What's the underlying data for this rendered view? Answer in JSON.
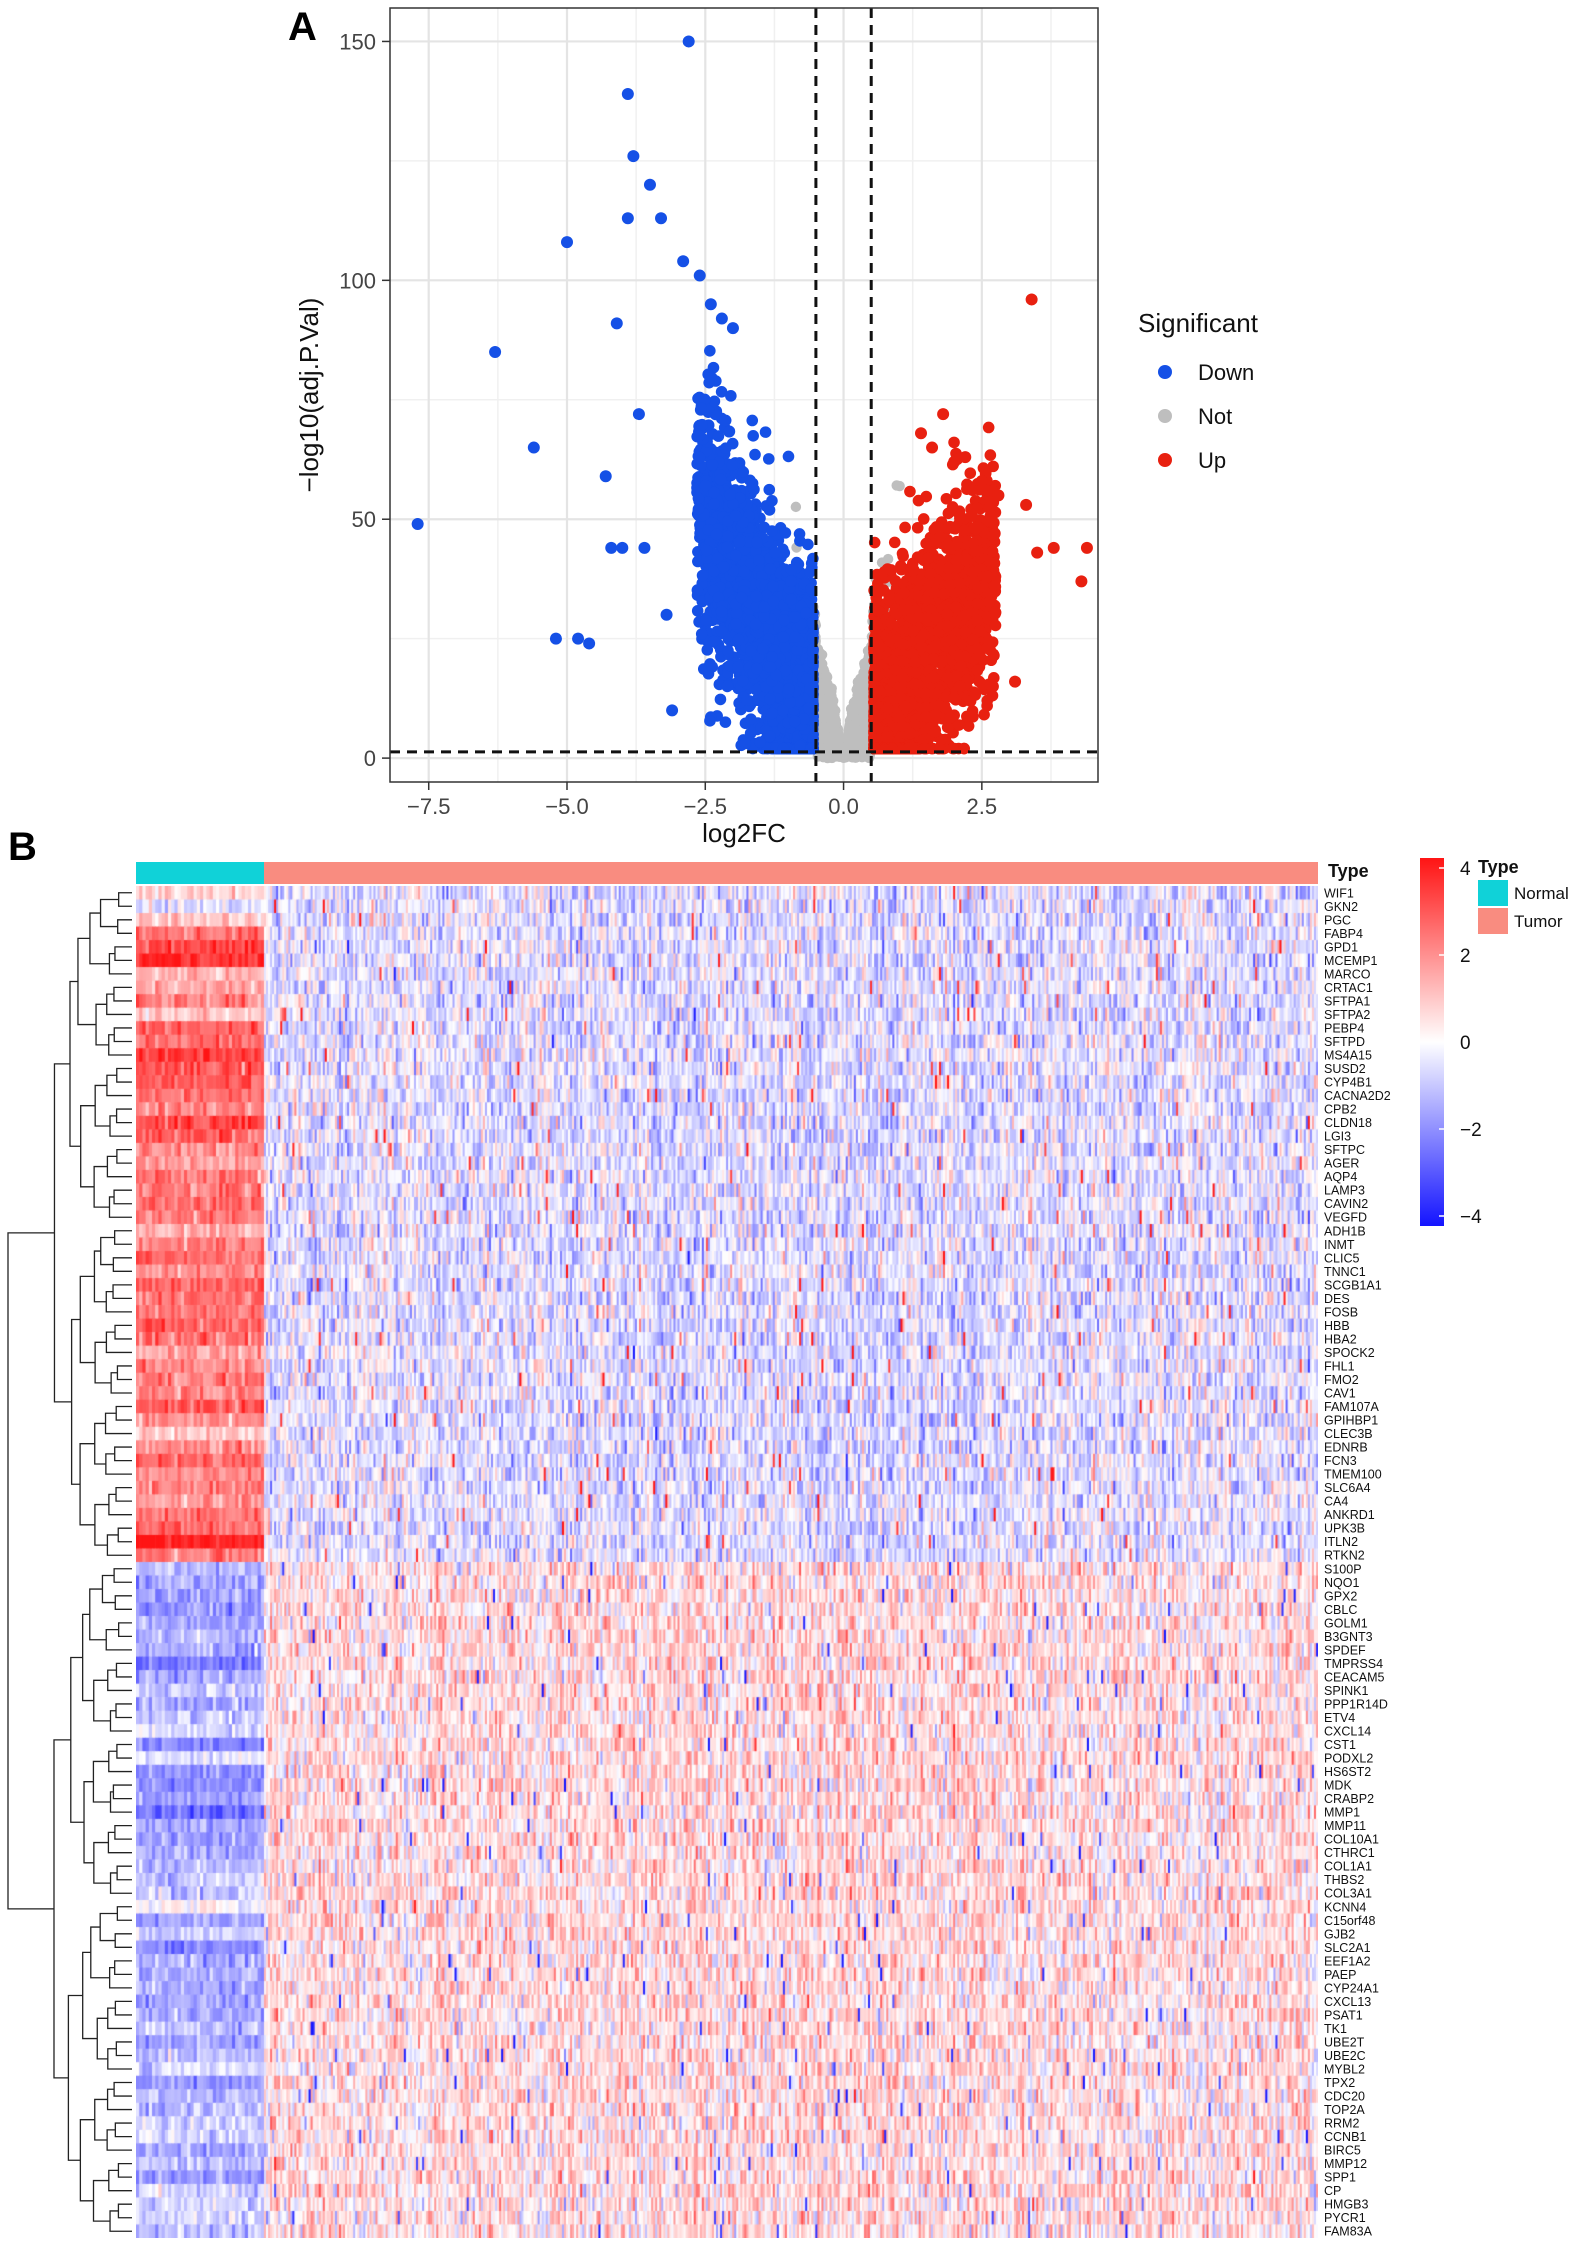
{
  "panel_a": {
    "label": "A",
    "chart_data": {
      "type": "scatter",
      "xlabel": "log2FC",
      "ylabel": "−log10(adj.P.Val)",
      "xlim": [
        -8.2,
        4.6
      ],
      "ylim": [
        -5,
        157
      ],
      "xticks": [
        -7.5,
        -5.0,
        -2.5,
        0.0,
        2.5
      ],
      "yticks": [
        0,
        50,
        100,
        150
      ],
      "tick_labels_x": [
        "−7.5",
        "−5.0",
        "−2.5",
        "0.0",
        "2.5"
      ],
      "tick_labels_y": [
        "0",
        "50",
        "100",
        "150"
      ],
      "thresholds": {
        "log2fc": [
          -0.5,
          0.5
        ],
        "neg_log10_p": 1.3
      },
      "grid": true,
      "legend_position": "right",
      "legend": {
        "title": "Significant",
        "entries": [
          {
            "name": "Down",
            "color": "#1550e6"
          },
          {
            "name": "Not",
            "color": "#bebebe"
          },
          {
            "name": "Up",
            "color": "#e82010"
          }
        ]
      },
      "series": [
        {
          "name": "Down",
          "color": "#1550e6",
          "x": [
            -2.8,
            -3.9,
            -3.8,
            -3.5,
            -3.9,
            -3.3,
            -5.0,
            -6.3,
            -4.1,
            -3.7,
            -5.6,
            -4.3,
            -4.0,
            -4.2,
            -3.6,
            -5.2,
            -4.8,
            -4.6,
            -7.7,
            -3.2,
            -3.1,
            -2.9,
            -2.6,
            -2.4,
            -2.2,
            -2.0
          ],
          "y": [
            150,
            139,
            126,
            120,
            113,
            113,
            108,
            85,
            91,
            72,
            65,
            59,
            44,
            44,
            44,
            25,
            25,
            24,
            49,
            30,
            10,
            104,
            101,
            95,
            92,
            90
          ]
        },
        {
          "name": "Up",
          "color": "#e82010",
          "x": [
            3.4,
            1.8,
            1.4,
            1.6,
            2.2,
            2.0,
            2.5,
            2.8,
            3.3,
            3.5,
            3.8,
            4.4,
            4.3,
            3.1,
            2.7
          ],
          "y": [
            96,
            72,
            68,
            65,
            63,
            62,
            58,
            55,
            53,
            43,
            44,
            44,
            37,
            16,
            15
          ]
        }
      ]
    }
  },
  "panel_b": {
    "label": "B",
    "type_label": "Type",
    "legend": {
      "title": "Type",
      "entries": [
        {
          "name": "Normal",
          "color": "#10d2d8"
        },
        {
          "name": "Tumor",
          "color": "#f98c80"
        }
      ]
    },
    "chart_data": {
      "type": "heatmap",
      "color_scale": {
        "min": -4,
        "max": 4,
        "ticks": [
          4,
          2,
          0,
          -2,
          -4
        ],
        "tick_labels": [
          "4",
          "2",
          "0",
          "−2",
          "−4"
        ],
        "colors": [
          "#1414ff",
          "#ffffff",
          "#ff1414"
        ]
      },
      "groups": [
        {
          "name": "Normal",
          "color": "#10d2d8"
        },
        {
          "name": "Tumor",
          "color": "#f98c80"
        }
      ],
      "rows": [
        "WIF1",
        "GKN2",
        "PGC",
        "FABP4",
        "GPD1",
        "MCEMP1",
        "MARCO",
        "CRTAC1",
        "SFTPA1",
        "SFTPA2",
        "PEBP4",
        "SFTPD",
        "MS4A15",
        "SUSD2",
        "CYP4B1",
        "CACNA2D2",
        "CPB2",
        "CLDN18",
        "LGI3",
        "SFTPC",
        "AGER",
        "AQP4",
        "LAMP3",
        "CAVIN2",
        "VEGFD",
        "ADH1B",
        "INMT",
        "CLIC5",
        "TNNC1",
        "SCGB1A1",
        "DES",
        "FOSB",
        "HBB",
        "HBA2",
        "SPOCK2",
        "FHL1",
        "FMO2",
        "CAV1",
        "FAM107A",
        "GPIHBP1",
        "CLEC3B",
        "EDNRB",
        "FCN3",
        "TMEM100",
        "SLC6A4",
        "CA4",
        "ANKRD1",
        "UPK3B",
        "ITLN2",
        "RTKN2",
        "S100P",
        "NQO1",
        "GPX2",
        "CBLC",
        "GOLM1",
        "B3GNT3",
        "SPDEF",
        "TMPRSS4",
        "CEACAM5",
        "SPINK1",
        "PPP1R14D",
        "ETV4",
        "CXCL14",
        "CST1",
        "PODXL2",
        "HS6ST2",
        "MDK",
        "CRABP2",
        "MMP1",
        "MMP11",
        "COL10A1",
        "CTHRC1",
        "COL1A1",
        "THBS2",
        "COL3A1",
        "KCNN4",
        "C15orf48",
        "GJB2",
        "SLC2A1",
        "EEF1A2",
        "PAEP",
        "CYP24A1",
        "CXCL13",
        "PSAT1",
        "TK1",
        "UBE2T",
        "UBE2C",
        "MYBL2",
        "TPX2",
        "CDC20",
        "TOP2A",
        "RRM2",
        "CCNB1",
        "BIRC5",
        "MMP12",
        "SPP1",
        "CP",
        "HMGB3",
        "PYCR1",
        "FAM83A"
      ],
      "row_groups": {
        "up_in_normal": [
          0,
          49
        ],
        "down_in_normal": [
          50,
          99
        ]
      }
    }
  }
}
